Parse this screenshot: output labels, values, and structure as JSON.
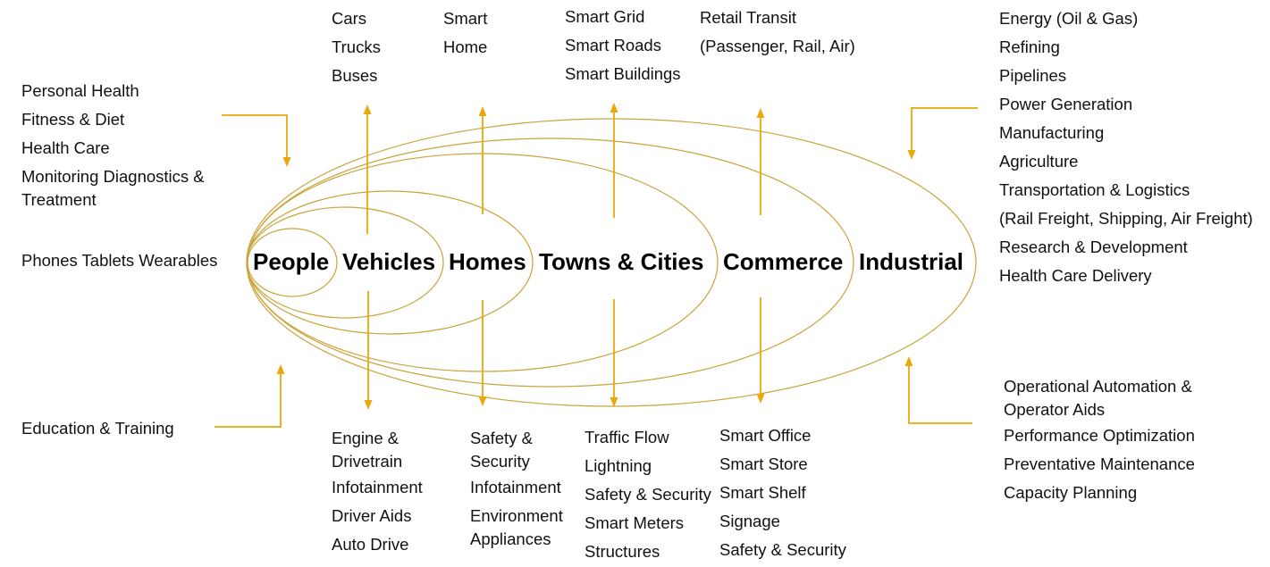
{
  "colors": {
    "ring": "#c9a43a",
    "arrow": "#eaa80a",
    "text": "#111111"
  },
  "rings": [
    "People",
    "Vehicles",
    "Homes",
    "Towns & Cities",
    "Commerce",
    "Industrial"
  ],
  "left": {
    "top_group": [
      "Personal Health",
      "Fitness & Diet",
      "Health Care",
      "Monitoring Diagnostics &",
      "Treatment"
    ],
    "devices": "Phones Tablets Wearables",
    "bottom": "Education & Training"
  },
  "top": {
    "vehicles": [
      "Cars",
      "Trucks",
      "Buses"
    ],
    "homes": [
      "Smart",
      "Home"
    ],
    "towns": [
      "Smart Grid",
      "Smart Roads",
      "Smart Buildings"
    ],
    "commerce": [
      "Retail Transit",
      "(Passenger, Rail, Air)"
    ]
  },
  "right": {
    "top_group": [
      "Energy (Oil & Gas)",
      "Refining",
      "Pipelines",
      "Power Generation",
      "Manufacturing",
      "Agriculture",
      "Transportation & Logistics",
      "(Rail Freight, Shipping, Air Freight)",
      "Research & Development",
      "Health Care Delivery"
    ],
    "bottom_group": [
      "Operational Automation &",
      "Operator Aids",
      "Performance Optimization",
      "Preventative Maintenance",
      "Capacity Planning"
    ]
  },
  "bottom": {
    "vehicles": [
      "Engine &",
      "Drivetrain",
      "Infotainment",
      "Driver Aids",
      "Auto Drive"
    ],
    "homes": [
      "Safety &",
      "Security",
      "Infotainment",
      "Environment",
      "Appliances"
    ],
    "towns": [
      "Traffic Flow",
      "Lightning",
      "Safety & Security",
      "Smart Meters",
      "Structures"
    ],
    "commerce": [
      "Smart Office",
      "Smart Store",
      "Smart Shelf",
      "Signage",
      "Safety & Security"
    ]
  }
}
